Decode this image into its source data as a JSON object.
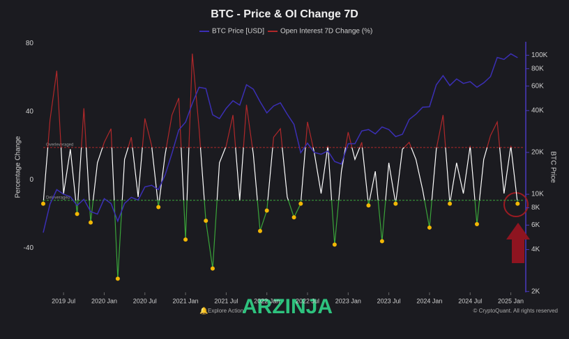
{
  "chart_data": {
    "type": "line",
    "title": "BTC - Price & OI Change 7D",
    "x": [
      "2019-04",
      "2019-05",
      "2019-06",
      "2019-07",
      "2019-08",
      "2019-09",
      "2019-10",
      "2019-11",
      "2019-12",
      "2020-01",
      "2020-02",
      "2020-03",
      "2020-04",
      "2020-05",
      "2020-06",
      "2020-07",
      "2020-08",
      "2020-09",
      "2020-10",
      "2020-11",
      "2020-12",
      "2021-01",
      "2021-02",
      "2021-03",
      "2021-04",
      "2021-05",
      "2021-06",
      "2021-07",
      "2021-08",
      "2021-09",
      "2021-10",
      "2021-11",
      "2021-12",
      "2022-01",
      "2022-02",
      "2022-03",
      "2022-04",
      "2022-05",
      "2022-06",
      "2022-07",
      "2022-08",
      "2022-09",
      "2022-10",
      "2022-11",
      "2022-12",
      "2023-01",
      "2023-02",
      "2023-03",
      "2023-04",
      "2023-05",
      "2023-06",
      "2023-07",
      "2023-08",
      "2023-09",
      "2023-10",
      "2023-11",
      "2023-12",
      "2024-01",
      "2024-02",
      "2024-03",
      "2024-04",
      "2024-05",
      "2024-06",
      "2024-07",
      "2024-08",
      "2024-09",
      "2024-10",
      "2024-11",
      "2024-12",
      "2025-01",
      "2025-02"
    ],
    "series": [
      {
        "name": "BTC Price [USD]",
        "color": "#3b2fb5",
        "axis": "y2",
        "values": [
          5300,
          8500,
          10800,
          10000,
          9600,
          8300,
          9200,
          7500,
          7200,
          9300,
          8600,
          6400,
          8600,
          9500,
          9100,
          11300,
          11600,
          10800,
          13800,
          19700,
          29000,
          33000,
          45000,
          58800,
          57700,
          37300,
          35000,
          41500,
          47100,
          43800,
          61300,
          57000,
          46300,
          38500,
          43200,
          45500,
          37700,
          31800,
          19900,
          23300,
          20000,
          19400,
          20500,
          17200,
          16500,
          23100,
          23100,
          28500,
          29200,
          27200,
          30500,
          29200,
          26000,
          27000,
          34500,
          37700,
          42300,
          42600,
          61200,
          71300,
          60600,
          67500,
          62700,
          64600,
          58900,
          63300,
          70200,
          96400,
          93400,
          102400,
          96000
        ]
      },
      {
        "name": "Open Interest 7D Change (%)",
        "color": "#b0282a",
        "values": [
          -14,
          35,
          64,
          -8,
          18,
          -20,
          42,
          -25,
          10,
          22,
          30,
          -58,
          12,
          25,
          -10,
          36,
          20,
          -16,
          15,
          38,
          48,
          -35,
          74,
          30,
          -24,
          -52,
          10,
          20,
          38,
          -12,
          44,
          15,
          -30,
          -18,
          25,
          30,
          -10,
          -22,
          -14,
          34,
          16,
          -8,
          20,
          -38,
          5,
          28,
          12,
          22,
          -15,
          5,
          -36,
          10,
          -14,
          18,
          22,
          12,
          -6,
          -28,
          18,
          38,
          -14,
          10,
          -8,
          20,
          -26,
          12,
          26,
          34,
          -8,
          20,
          -14
        ]
      }
    ],
    "xlim": [
      "2019-04",
      "2025-03"
    ],
    "xticks": [
      {
        "value": "2019-07",
        "label": "2019 Jul"
      },
      {
        "value": "2020-01",
        "label": "2020 Jan"
      },
      {
        "value": "2020-07",
        "label": "2020 Jul"
      },
      {
        "value": "2021-01",
        "label": "2021 Jan"
      },
      {
        "value": "2021-07",
        "label": "2021 Jul"
      },
      {
        "value": "2022-01",
        "label": "2022 Jan"
      },
      {
        "value": "2022-07",
        "label": "2022 Jul"
      },
      {
        "value": "2023-01",
        "label": "2023 Jan"
      },
      {
        "value": "2023-07",
        "label": "2023 Jul"
      },
      {
        "value": "2024-01",
        "label": "2024 Jan"
      },
      {
        "value": "2024-07",
        "label": "2024 Jul"
      },
      {
        "value": "2025-01",
        "label": "2025 Jan"
      }
    ],
    "ylim": [
      -66,
      81
    ],
    "yticks": [
      80,
      40,
      0,
      -40
    ],
    "y_label": "Percentage Change",
    "y2lim": [
      1970,
      125000
    ],
    "y2log": true,
    "y2ticks": [
      {
        "value": 2000,
        "label": "2K"
      },
      {
        "value": 4000,
        "label": "4K"
      },
      {
        "value": 6000,
        "label": "6K"
      },
      {
        "value": 8000,
        "label": "8K"
      },
      {
        "value": 10000,
        "label": "10K"
      },
      {
        "value": 20000,
        "label": "20K"
      },
      {
        "value": 40000,
        "label": "40K"
      },
      {
        "value": 60000,
        "label": "60K"
      },
      {
        "value": 80000,
        "label": "80K"
      },
      {
        "value": 100000,
        "label": "100K"
      }
    ],
    "y2_label": "BTC Price",
    "thresholds": [
      {
        "label": "Overleveraged",
        "value": 19,
        "color": "#b0282a"
      },
      {
        "label": "Deleveraged",
        "value": -12,
        "color": "#3aa53a"
      }
    ],
    "footer_left": "Explore Actions",
    "footer_right": "© CryptoQuant. All rights reserved",
    "watermark": "ARZINJA"
  }
}
